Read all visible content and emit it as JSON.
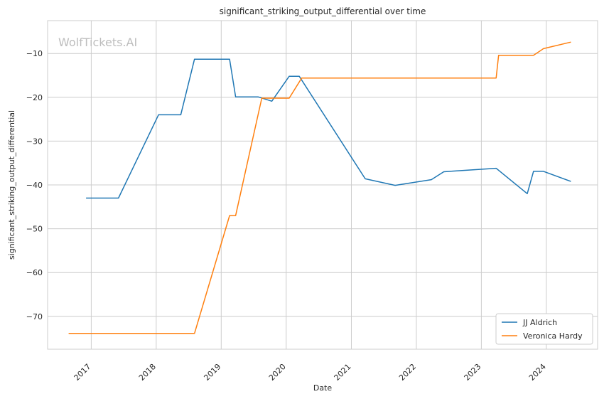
{
  "chart_data": {
    "type": "line",
    "title": "significant_striking_output_differential over time",
    "xlabel": "Date",
    "ylabel": "significant_striking_output_differential",
    "watermark": "WolfTickets.AI",
    "x_ticks": [
      "2017",
      "2018",
      "2019",
      "2020",
      "2021",
      "2022",
      "2023",
      "2024"
    ],
    "y_ticks": [
      -10,
      -20,
      -30,
      -40,
      -50,
      -60,
      -70
    ],
    "y_tick_labels": [
      "−10",
      "−20",
      "−30",
      "−40",
      "−50",
      "−60",
      "−70"
    ],
    "xlim": [
      "2016-05-01",
      "2024-10-15"
    ],
    "ylim": [
      -77.5,
      -2.5
    ],
    "grid": true,
    "legend_position": "lower-right",
    "series": [
      {
        "name": "JJ Aldrich",
        "color": "#1f77b4",
        "points": [
          [
            "2016-12-03",
            -43.0
          ],
          [
            "2017-06-03",
            -43.0
          ],
          [
            "2018-01-14",
            -24.0
          ],
          [
            "2018-05-19",
            -24.0
          ],
          [
            "2018-08-04",
            -11.3
          ],
          [
            "2019-02-17",
            -11.3
          ],
          [
            "2019-03-23",
            -19.9
          ],
          [
            "2019-07-27",
            -19.9
          ],
          [
            "2019-10-12",
            -20.9
          ],
          [
            "2020-01-18",
            -15.2
          ],
          [
            "2020-03-14",
            -15.2
          ],
          [
            "2021-03-20",
            -38.6
          ],
          [
            "2021-09-04",
            -40.1
          ],
          [
            "2022-03-26",
            -38.8
          ],
          [
            "2022-06-04",
            -37.0
          ],
          [
            "2023-03-25",
            -36.2
          ],
          [
            "2023-09-16",
            -42.0
          ],
          [
            "2023-10-21",
            -36.9
          ],
          [
            "2023-12-16",
            -36.9
          ],
          [
            "2024-05-18",
            -39.2
          ]
        ]
      },
      {
        "name": "Veronica Hardy",
        "color": "#ff7f0e",
        "points": [
          [
            "2016-08-27",
            -73.9
          ],
          [
            "2018-08-04",
            -73.9
          ],
          [
            "2019-02-17",
            -47.0
          ],
          [
            "2019-03-23",
            -47.0
          ],
          [
            "2019-08-17",
            -20.2
          ],
          [
            "2019-09-21",
            -20.2
          ],
          [
            "2020-01-18",
            -20.2
          ],
          [
            "2020-03-28",
            -15.6
          ],
          [
            "2023-03-25",
            -15.6
          ],
          [
            "2023-04-08",
            -10.4
          ],
          [
            "2023-10-21",
            -10.4
          ],
          [
            "2023-12-16",
            -8.9
          ],
          [
            "2024-05-18",
            -7.4
          ]
        ]
      }
    ]
  }
}
